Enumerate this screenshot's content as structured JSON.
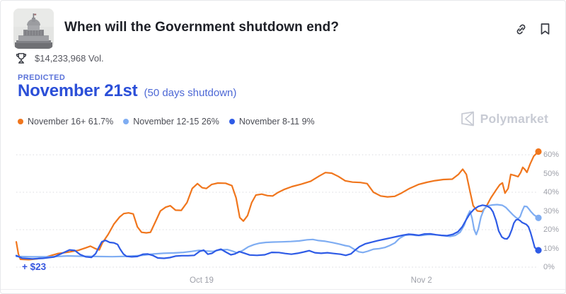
{
  "header": {
    "title": "When will the Government shutdown end?"
  },
  "stats": {
    "volume": "$14,233,968 Vol."
  },
  "predicted": {
    "label": "PREDICTED",
    "value": "November 21st",
    "note": "(50 days shutdown)"
  },
  "watermark": {
    "text": "Polymarket"
  },
  "footer": {
    "change_label": "+ $23"
  },
  "colors": {
    "orange": "#f0761d",
    "light_blue": "#7fadf2",
    "dark_blue": "#2e5be6",
    "grid": "#d9dadf",
    "axis_text": "#9ea0a9"
  },
  "chart_data": {
    "type": "line",
    "title": "",
    "xlabel": "",
    "ylabel": "",
    "ylim": [
      0,
      65
    ],
    "grid": "dotted horizontal at 0/20/40/60",
    "legend_position": "top-left",
    "y_axis": {
      "ticks": [
        {
          "label": "0%",
          "pct": 0
        },
        {
          "label": "10%",
          "pct": 10
        },
        {
          "label": "20%",
          "pct": 20
        },
        {
          "label": "30%",
          "pct": 30
        },
        {
          "label": "40%",
          "pct": 40
        },
        {
          "label": "50%",
          "pct": 50
        },
        {
          "label": "60%",
          "pct": 60
        }
      ],
      "gridlines_pct": [
        0,
        20,
        40,
        60
      ]
    },
    "x_axis": {
      "ticks": [
        {
          "label": "Oct 19",
          "x": 35.5
        },
        {
          "label": "Nov 2",
          "x": 77.6
        }
      ]
    },
    "series": [
      {
        "name": "November 16+",
        "current": "61.7%",
        "legend_text": "November 16+ 61.7%",
        "color": "#f0761d",
        "points": [
          [
            0,
            13.5
          ],
          [
            0.4,
            7
          ],
          [
            0.8,
            4.2
          ],
          [
            2.4,
            4
          ],
          [
            4.1,
            4.5
          ],
          [
            5.8,
            5.5
          ],
          [
            7.9,
            7.2
          ],
          [
            9.9,
            8
          ],
          [
            11.9,
            9
          ],
          [
            13.3,
            10.3
          ],
          [
            14.2,
            11.2
          ],
          [
            15.2,
            9.8
          ],
          [
            15.9,
            9.2
          ],
          [
            16.5,
            13
          ],
          [
            17.6,
            17.5
          ],
          [
            18.7,
            23
          ],
          [
            19.8,
            26.8
          ],
          [
            20.6,
            28.6
          ],
          [
            21.5,
            29
          ],
          [
            22.4,
            28.4
          ],
          [
            23.2,
            21.5
          ],
          [
            24,
            18.6
          ],
          [
            24.9,
            18.3
          ],
          [
            25.7,
            18.6
          ],
          [
            26.7,
            24.5
          ],
          [
            27.6,
            30
          ],
          [
            28.6,
            32
          ],
          [
            29.5,
            32.8
          ],
          [
            30.5,
            30.4
          ],
          [
            31.6,
            30.3
          ],
          [
            32.7,
            34.5
          ],
          [
            33.7,
            42
          ],
          [
            34.7,
            44.6
          ],
          [
            35.6,
            42.4
          ],
          [
            36.4,
            42
          ],
          [
            37.4,
            44.1
          ],
          [
            38.6,
            44.9
          ],
          [
            40.1,
            44.8
          ],
          [
            41.3,
            43.5
          ],
          [
            42.1,
            37
          ],
          [
            42.8,
            26.5
          ],
          [
            43.5,
            24.6
          ],
          [
            44.3,
            27.5
          ],
          [
            45.1,
            34.5
          ],
          [
            45.9,
            38.5
          ],
          [
            47,
            39
          ],
          [
            48.1,
            38.2
          ],
          [
            49.1,
            38
          ],
          [
            50.1,
            39.8
          ],
          [
            51.4,
            41.6
          ],
          [
            52.8,
            43
          ],
          [
            54.6,
            44.3
          ],
          [
            56.4,
            45.9
          ],
          [
            58,
            48.6
          ],
          [
            59.2,
            50.5
          ],
          [
            60.4,
            50.2
          ],
          [
            61.7,
            48.4
          ],
          [
            63,
            46.1
          ],
          [
            64.4,
            45.4
          ],
          [
            65.9,
            45.2
          ],
          [
            67.2,
            44.6
          ],
          [
            68.4,
            40
          ],
          [
            69.8,
            38
          ],
          [
            71.1,
            37.5
          ],
          [
            72.5,
            37.8
          ],
          [
            73.8,
            39.6
          ],
          [
            75.3,
            42
          ],
          [
            77,
            44.1
          ],
          [
            78.6,
            45.3
          ],
          [
            80.2,
            46.2
          ],
          [
            81.8,
            46.8
          ],
          [
            83.5,
            47
          ],
          [
            84.7,
            49.6
          ],
          [
            85.5,
            52.3
          ],
          [
            86.2,
            49.5
          ],
          [
            86.9,
            40.5
          ],
          [
            87.5,
            32.8
          ],
          [
            88.3,
            30
          ],
          [
            89.2,
            29.7
          ],
          [
            90,
            32.3
          ],
          [
            90.9,
            37
          ],
          [
            91.9,
            41.2
          ],
          [
            92.6,
            44
          ],
          [
            93.1,
            45
          ],
          [
            93.6,
            39.5
          ],
          [
            94.2,
            42
          ],
          [
            94.7,
            49.5
          ],
          [
            95.4,
            49
          ],
          [
            96.1,
            48.3
          ],
          [
            96.6,
            50.5
          ],
          [
            97,
            53.3
          ],
          [
            97.4,
            52.2
          ],
          [
            97.8,
            50.6
          ],
          [
            98.4,
            55
          ],
          [
            99.1,
            59.3
          ],
          [
            100,
            61.7
          ]
        ]
      },
      {
        "name": "November 12-15",
        "current": "26%",
        "legend_text": "November 12-15 26%",
        "color": "#7fadf2",
        "points": [
          [
            0,
            5.7
          ],
          [
            3.1,
            5.5
          ],
          [
            6.5,
            5.5
          ],
          [
            9.9,
            6
          ],
          [
            12.6,
            5.8
          ],
          [
            15.3,
            5.7
          ],
          [
            18.4,
            5.6
          ],
          [
            21.4,
            5.8
          ],
          [
            24.1,
            6.3
          ],
          [
            26.2,
            7
          ],
          [
            28.2,
            7.4
          ],
          [
            30.2,
            7.6
          ],
          [
            32,
            7.9
          ],
          [
            33.6,
            8.4
          ],
          [
            35,
            9
          ],
          [
            36.3,
            8.6
          ],
          [
            37.7,
            8.4
          ],
          [
            39,
            9.2
          ],
          [
            40.4,
            9.4
          ],
          [
            41.5,
            8.5
          ],
          [
            42.3,
            7.6
          ],
          [
            43.4,
            9
          ],
          [
            44.4,
            10.8
          ],
          [
            45.5,
            12
          ],
          [
            46.6,
            12.8
          ],
          [
            47.8,
            13.2
          ],
          [
            49.3,
            13.4
          ],
          [
            50.9,
            13.5
          ],
          [
            52.6,
            13.7
          ],
          [
            54.2,
            14
          ],
          [
            55.7,
            14.6
          ],
          [
            56.8,
            14.8
          ],
          [
            57.9,
            14.2
          ],
          [
            59.2,
            13.8
          ],
          [
            60.6,
            13.1
          ],
          [
            61.9,
            12.3
          ],
          [
            63,
            11.5
          ],
          [
            63.8,
            11.1
          ],
          [
            64.8,
            9.4
          ],
          [
            65.6,
            8.2
          ],
          [
            66.4,
            7.8
          ],
          [
            67.3,
            8.5
          ],
          [
            68.4,
            9.6
          ],
          [
            69.5,
            9.9
          ],
          [
            70.6,
            10.5
          ],
          [
            71.5,
            11.5
          ],
          [
            72.5,
            12.9
          ],
          [
            73.4,
            15.4
          ],
          [
            74.4,
            17
          ],
          [
            75.5,
            17.3
          ],
          [
            76.6,
            16.9
          ],
          [
            77.6,
            16.9
          ],
          [
            78.7,
            17.3
          ],
          [
            79.8,
            17.4
          ],
          [
            80.9,
            17.1
          ],
          [
            82,
            16.7
          ],
          [
            83.1,
            16.4
          ],
          [
            84.1,
            17
          ],
          [
            85,
            18.6
          ],
          [
            85.8,
            22.4
          ],
          [
            86.4,
            27.3
          ],
          [
            86.9,
            30
          ],
          [
            87.3,
            26
          ],
          [
            87.7,
            20
          ],
          [
            88.1,
            17.4
          ],
          [
            88.5,
            20.5
          ],
          [
            89,
            26.8
          ],
          [
            89.6,
            31
          ],
          [
            90.2,
            32.7
          ],
          [
            91.2,
            33.2
          ],
          [
            92.1,
            33.4
          ],
          [
            93.1,
            33
          ],
          [
            93.8,
            31.8
          ],
          [
            94.4,
            30
          ],
          [
            95.1,
            28
          ],
          [
            95.7,
            26.5
          ],
          [
            96.1,
            25.8
          ],
          [
            96.5,
            27
          ],
          [
            96.9,
            30
          ],
          [
            97.3,
            32.5
          ],
          [
            97.8,
            32.3
          ],
          [
            98.2,
            31
          ],
          [
            98.6,
            29.5
          ],
          [
            99.1,
            28
          ],
          [
            100,
            26.3
          ]
        ]
      },
      {
        "name": "November 8-11",
        "current": "9%",
        "legend_text": "November 8-11 9%",
        "color": "#2e5be6",
        "points": [
          [
            0,
            6.2
          ],
          [
            1.1,
            4.8
          ],
          [
            3.1,
            4.4
          ],
          [
            5.1,
            4.7
          ],
          [
            7.2,
            5.4
          ],
          [
            8.8,
            7.4
          ],
          [
            10.2,
            9.2
          ],
          [
            11.2,
            8.9
          ],
          [
            12.2,
            6.8
          ],
          [
            13.3,
            5.5
          ],
          [
            14.4,
            5.2
          ],
          [
            15.2,
            7.2
          ],
          [
            15.9,
            11
          ],
          [
            16.4,
            13.6
          ],
          [
            17.1,
            14.3
          ],
          [
            17.9,
            13.2
          ],
          [
            18.7,
            13
          ],
          [
            19.4,
            12.1
          ],
          [
            19.9,
            9.6
          ],
          [
            20.5,
            7.1
          ],
          [
            21.1,
            5.8
          ],
          [
            22.1,
            5.5
          ],
          [
            23.2,
            5.7
          ],
          [
            24.3,
            6.9
          ],
          [
            25.2,
            7
          ],
          [
            26.2,
            6.2
          ],
          [
            27.1,
            4.9
          ],
          [
            28.3,
            4.7
          ],
          [
            29.4,
            5.1
          ],
          [
            30.5,
            5.9
          ],
          [
            31.7,
            6.1
          ],
          [
            32.9,
            6.1
          ],
          [
            34.1,
            6.3
          ],
          [
            35.1,
            8.4
          ],
          [
            35.9,
            9.1
          ],
          [
            36.7,
            6.9
          ],
          [
            37.5,
            7.4
          ],
          [
            38.3,
            8.9
          ],
          [
            39.2,
            9.6
          ],
          [
            40.1,
            8.1
          ],
          [
            41.1,
            6.6
          ],
          [
            41.9,
            7.1
          ],
          [
            42.7,
            8.3
          ],
          [
            43.6,
            7.5
          ],
          [
            44.7,
            6.5
          ],
          [
            46.1,
            6.3
          ],
          [
            47.6,
            6.6
          ],
          [
            48.9,
            7.9
          ],
          [
            50.3,
            7.8
          ],
          [
            51.5,
            7.3
          ],
          [
            52.7,
            6.9
          ],
          [
            53.9,
            7.4
          ],
          [
            55.1,
            8.1
          ],
          [
            56.1,
            8.8
          ],
          [
            57.2,
            7.7
          ],
          [
            58.4,
            7.4
          ],
          [
            59.6,
            7.7
          ],
          [
            60.8,
            7.3
          ],
          [
            62.1,
            6.9
          ],
          [
            63.1,
            6.3
          ],
          [
            64.1,
            7.1
          ],
          [
            64.9,
            9.1
          ],
          [
            65.7,
            10.9
          ],
          [
            66.8,
            12.4
          ],
          [
            68,
            13.3
          ],
          [
            69.2,
            14.1
          ],
          [
            70.5,
            14.9
          ],
          [
            71.8,
            15.7
          ],
          [
            73,
            16.4
          ],
          [
            74.1,
            17.1
          ],
          [
            75.1,
            17.6
          ],
          [
            76,
            17.4
          ],
          [
            77.1,
            17
          ],
          [
            78.2,
            17.7
          ],
          [
            79.3,
            17.8
          ],
          [
            80.4,
            17.3
          ],
          [
            81.4,
            17
          ],
          [
            82.5,
            16.8
          ],
          [
            83.6,
            17.5
          ],
          [
            84.6,
            18.9
          ],
          [
            85.4,
            21.5
          ],
          [
            86.2,
            25.5
          ],
          [
            86.9,
            28.6
          ],
          [
            87.7,
            31
          ],
          [
            88.5,
            32.4
          ],
          [
            89.3,
            33.1
          ],
          [
            90.1,
            32.7
          ],
          [
            90.8,
            31.6
          ],
          [
            91.3,
            29.5
          ],
          [
            91.9,
            24.8
          ],
          [
            92.4,
            19.3
          ],
          [
            93,
            16.1
          ],
          [
            93.5,
            15.2
          ],
          [
            94,
            15.1
          ],
          [
            94.4,
            16.5
          ],
          [
            94.9,
            20
          ],
          [
            95.3,
            23.5
          ],
          [
            95.7,
            25.2
          ],
          [
            96.1,
            25.5
          ],
          [
            96.5,
            24.8
          ],
          [
            96.9,
            23.8
          ],
          [
            97.3,
            23.3
          ],
          [
            97.7,
            22.8
          ],
          [
            98.1,
            21.5
          ],
          [
            98.5,
            18.5
          ],
          [
            98.9,
            14.5
          ],
          [
            99.3,
            10.5
          ],
          [
            100,
            9
          ]
        ]
      }
    ]
  }
}
